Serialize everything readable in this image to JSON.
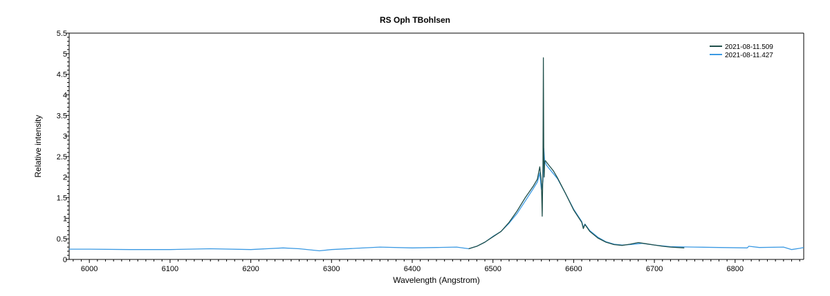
{
  "chart_data": {
    "type": "line",
    "title": "RS Oph   TBohlsen",
    "xlabel": "Wavelength (Angstrom)",
    "ylabel": "Relative intensity",
    "xlim": [
      5975,
      6885
    ],
    "ylim": [
      0,
      5.5
    ],
    "xticks": [
      "6000",
      "6100",
      "6200",
      "6300",
      "6400",
      "6500",
      "6600",
      "6700",
      "6800"
    ],
    "yticks": [
      "0",
      "0.5",
      "1",
      "1.5",
      "2",
      "2.5",
      "3",
      "3.5",
      "4",
      "4.5",
      "5",
      "5.5"
    ],
    "grid": false,
    "legend_position": "top-right",
    "series": [
      {
        "name": "2021-08-11.509",
        "color": "#1f4f4a",
        "x": [
          6470,
          6480,
          6490,
          6500,
          6510,
          6520,
          6530,
          6540,
          6550,
          6555,
          6558,
          6560,
          6561,
          6562,
          6562.5,
          6563,
          6563.5,
          6564,
          6565,
          6568,
          6575,
          6580,
          6590,
          6600,
          6610,
          6612,
          6614,
          6620,
          6630,
          6640,
          6650,
          6660,
          6670,
          6680,
          6690,
          6700,
          6710,
          6720,
          6737
        ],
        "y": [
          0.26,
          0.32,
          0.42,
          0.55,
          0.68,
          0.9,
          1.18,
          1.5,
          1.78,
          1.95,
          2.25,
          1.9,
          1.05,
          2.3,
          4.9,
          2.5,
          2.0,
          2.38,
          2.4,
          2.32,
          2.15,
          1.98,
          1.6,
          1.2,
          0.9,
          0.75,
          0.85,
          0.68,
          0.52,
          0.42,
          0.36,
          0.34,
          0.37,
          0.41,
          0.38,
          0.35,
          0.32,
          0.3,
          0.28
        ]
      },
      {
        "name": "2021-08-11.427",
        "color": "#3a99e3",
        "x": [
          5975,
          6000,
          6050,
          6100,
          6150,
          6200,
          6240,
          6260,
          6285,
          6300,
          6330,
          6360,
          6400,
          6430,
          6455,
          6470,
          6480,
          6490,
          6500,
          6510,
          6520,
          6530,
          6540,
          6550,
          6555,
          6558,
          6560,
          6562,
          6563,
          6564,
          6566,
          6570,
          6580,
          6590,
          6600,
          6610,
          6612,
          6614,
          6620,
          6630,
          6640,
          6650,
          6660,
          6670,
          6685,
          6700,
          6720,
          6750,
          6780,
          6815,
          6817,
          6830,
          6860,
          6870,
          6880,
          6885
        ],
        "y": [
          0.25,
          0.25,
          0.24,
          0.24,
          0.26,
          0.24,
          0.28,
          0.26,
          0.21,
          0.24,
          0.27,
          0.3,
          0.28,
          0.29,
          0.3,
          0.26,
          0.32,
          0.42,
          0.56,
          0.68,
          0.88,
          1.12,
          1.42,
          1.72,
          1.88,
          2.1,
          1.7,
          1.9,
          2.7,
          2.4,
          2.3,
          2.2,
          1.96,
          1.6,
          1.22,
          0.92,
          0.78,
          0.86,
          0.7,
          0.54,
          0.43,
          0.37,
          0.35,
          0.36,
          0.39,
          0.35,
          0.31,
          0.3,
          0.29,
          0.28,
          0.32,
          0.29,
          0.3,
          0.24,
          0.27,
          0.29
        ]
      }
    ]
  }
}
